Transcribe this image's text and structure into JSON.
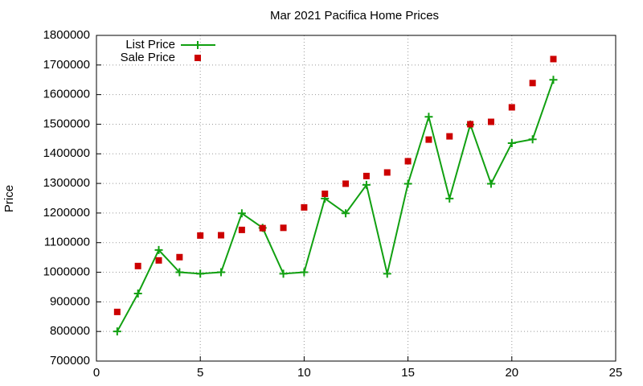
{
  "chart_data": {
    "type": "line",
    "title": "Mar 2021 Pacifica Home Prices",
    "y_label": "Price",
    "x": [
      1,
      2,
      3,
      4,
      5,
      6,
      7,
      8,
      9,
      10,
      11,
      12,
      13,
      14,
      15,
      16,
      17,
      18,
      19,
      20,
      21,
      22
    ],
    "series": [
      {
        "name": "List Price",
        "color": "#11a011",
        "style": "linespoints",
        "values": [
          800000,
          928000,
          1075000,
          1000000,
          995000,
          1000000,
          1199000,
          1150000,
          995000,
          1000000,
          1249000,
          1199000,
          1295000,
          995000,
          1299000,
          1525000,
          1249000,
          1499000,
          1299000,
          1436000,
          1449000,
          1650000
        ]
      },
      {
        "name": "Sale Price",
        "color": "#cc0000",
        "style": "points",
        "values": [
          866000,
          1021000,
          1040000,
          1051000,
          1124000,
          1125000,
          1143000,
          1149000,
          1150000,
          1219000,
          1265000,
          1299000,
          1325000,
          1337000,
          1375000,
          1448000,
          1459000,
          1500000,
          1508000,
          1557000,
          1639000,
          1720000
        ]
      }
    ],
    "xlim": [
      0,
      25
    ],
    "xticks": [
      0,
      5,
      10,
      15,
      20,
      25
    ],
    "ylim": [
      700000,
      1800000
    ],
    "yticks": [
      700000,
      800000,
      900000,
      1000000,
      1100000,
      1200000,
      1300000,
      1400000,
      1500000,
      1600000,
      1700000,
      1800000
    ],
    "grid": true,
    "legend": "top-left"
  }
}
